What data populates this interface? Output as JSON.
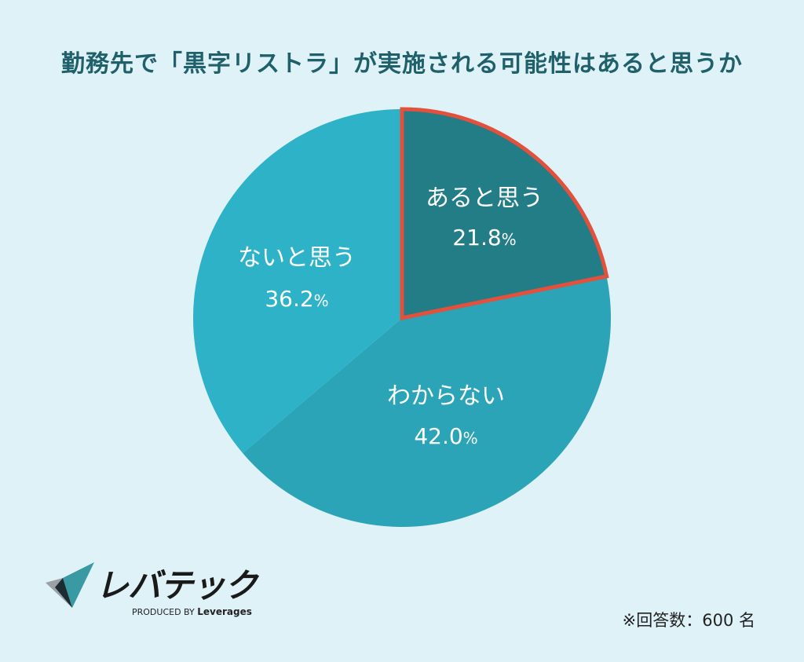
{
  "chart_data": {
    "type": "pie",
    "title": "勤務先で「黒字リストラ」が実施される可能性はあると思うか",
    "slices": [
      {
        "label": "あると思う",
        "value": 21.8,
        "display": "21.8",
        "unit": "%",
        "color": "#227d86",
        "highlight": true,
        "highlight_color": "#e3503c"
      },
      {
        "label": "わからない",
        "value": 42.0,
        "display": "42.0",
        "unit": "%",
        "color": "#2aa4b6",
        "highlight": false
      },
      {
        "label": "ないと思う",
        "value": 36.2,
        "display": "36.2",
        "unit": "%",
        "color": "#2db2c8",
        "highlight": false
      }
    ],
    "start": "12 o'clock",
    "direction": "clockwise"
  },
  "logo": {
    "name": "レバテック",
    "produced_by_prefix": "PRODUCED BY",
    "produced_by_brand": "Leverages"
  },
  "footnote": "※回答数：600 名",
  "colors": {
    "background": "#dff2f8",
    "title": "#20606a"
  }
}
